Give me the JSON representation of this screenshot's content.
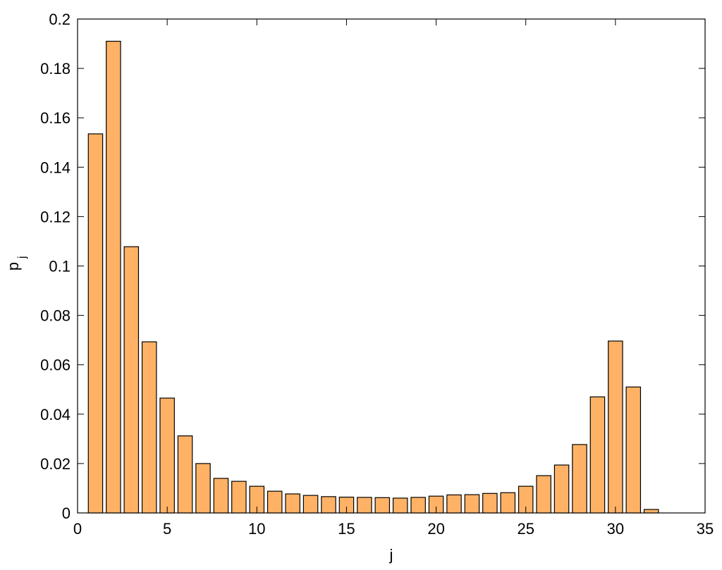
{
  "chart_data": {
    "type": "bar",
    "xlabel": "j",
    "ylabel": "p",
    "ylabel_subscript": "j",
    "x": [
      1,
      2,
      3,
      4,
      5,
      6,
      7,
      8,
      9,
      10,
      11,
      12,
      13,
      14,
      15,
      16,
      17,
      18,
      19,
      20,
      21,
      22,
      23,
      24,
      25,
      26,
      27,
      28,
      29,
      30,
      31,
      32
    ],
    "values": [
      0.1535,
      0.191,
      0.1078,
      0.0693,
      0.0465,
      0.0312,
      0.02,
      0.014,
      0.0128,
      0.0108,
      0.0088,
      0.0077,
      0.0071,
      0.0066,
      0.0064,
      0.0063,
      0.0062,
      0.006,
      0.0063,
      0.0068,
      0.0073,
      0.0074,
      0.0079,
      0.0082,
      0.0108,
      0.0151,
      0.0194,
      0.0277,
      0.047,
      0.0696,
      0.051,
      0.0014
    ],
    "color": "#ffb266",
    "xlim": [
      0,
      35
    ],
    "xticks": [
      0,
      5,
      10,
      15,
      20,
      25,
      30,
      35
    ],
    "ylim": [
      0,
      0.2
    ],
    "yticks": [
      0,
      0.02,
      0.04,
      0.06,
      0.08,
      0.1,
      0.12,
      0.14,
      0.16,
      0.18,
      0.2
    ],
    "grid": false
  }
}
